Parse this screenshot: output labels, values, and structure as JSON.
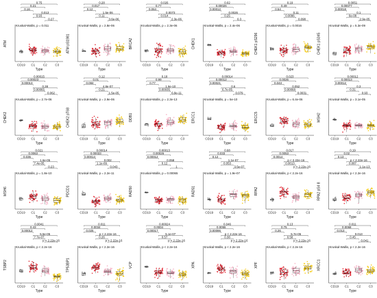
{
  "chart_data": {
    "type": "scatter",
    "subtype": "boxplot-with-jitter",
    "layout": {
      "rows": 4,
      "cols": 6
    },
    "categories": [
      "CD19",
      "C1",
      "C2",
      "C3"
    ],
    "xlabel": "Type",
    "colors": {
      "CD19": "#8c8c8c",
      "C1": "#e0101d",
      "C2": "#f7a6bd",
      "C3": "#f7c800"
    },
    "panels": [
      {
        "ylabel": "ATM",
        "pvalues": [
          "0.16",
          "0.21",
          "0.75",
          "0.93",
          "0.013",
          "0.27"
        ],
        "kw": "Kruskal-Wallis, p = 0.011",
        "groups": {
          "CD19": {
            "center": 0.28,
            "spread": 0.05,
            "n": 8
          },
          "C1": {
            "center": 0.32,
            "spread": 0.12,
            "n": 45
          },
          "C2": {
            "center": 0.3,
            "spread": 0.12,
            "n": 40
          },
          "C3": {
            "center": 0.28,
            "spread": 0.12,
            "n": 45
          }
        }
      },
      {
        "ylabel": "ATM pS1981",
        "pvalues": [
          "0.12",
          "0.017",
          "0.28",
          "0.11",
          "1.5e-06",
          "3.6e-06"
        ],
        "kw": "Kruskal-Wallis, p = 2.8e-06",
        "groups": {
          "CD19": {
            "center": 0.3,
            "spread": 0.05,
            "n": 8
          },
          "C1": {
            "center": 0.28,
            "spread": 0.12,
            "n": 45
          },
          "C2": {
            "center": 0.36,
            "spread": 0.12,
            "n": 40
          },
          "C3": {
            "center": 0.38,
            "spread": 0.12,
            "n": 45
          }
        }
      },
      {
        "ylabel": "BRCA2",
        "pvalues": [
          "0.064",
          "0.77",
          "0.026",
          "0.014",
          "0.0073",
          "2.3e-06"
        ],
        "kw": "Kruskal-Wallis, p = 2.3e-06",
        "groups": {
          "CD19": {
            "center": 0.3,
            "spread": 0.05,
            "n": 8
          },
          "C1": {
            "center": 0.3,
            "spread": 0.14,
            "n": 45
          },
          "C2": {
            "center": 0.32,
            "spread": 0.12,
            "n": 40
          },
          "C3": {
            "center": 0.26,
            "spread": 0.12,
            "n": 45
          }
        }
      },
      {
        "ylabel": "CHEK1",
        "pvalues": [
          "0.00012",
          "0.00026",
          "0.02",
          "0.25",
          "0.0026",
          "0.3"
        ],
        "kw": "Kruskal-Wallis, p = 2.4e-06",
        "groups": {
          "CD19": {
            "center": 0.48,
            "spread": 0.03,
            "n": 8
          },
          "C1": {
            "center": 0.24,
            "spread": 0.1,
            "n": 45
          },
          "C2": {
            "center": 0.28,
            "spread": 0.1,
            "n": 40
          },
          "C3": {
            "center": 0.22,
            "spread": 0.1,
            "n": 45
          }
        }
      },
      {
        "ylabel": "CHEK1 pS296",
        "pvalues": [
          "0.54",
          "0.49",
          "0.19",
          "0.0096",
          "0.11",
          "0.098"
        ],
        "kw": "Kruskal-Wallis, p = 0.0016",
        "groups": {
          "CD19": {
            "center": 0.36,
            "spread": 0.05,
            "n": 8
          },
          "C1": {
            "center": 0.3,
            "spread": 0.12,
            "n": 45
          },
          "C2": {
            "center": 0.34,
            "spread": 0.12,
            "n": 40
          },
          "C3": {
            "center": 0.4,
            "spread": 0.12,
            "n": 45
          }
        }
      },
      {
        "ylabel": "CHEK1 pS345",
        "pvalues": [
          "0.00018",
          "0.00077",
          "0.0051",
          "6e-08",
          "0.1",
          "2.9e-05"
        ],
        "kw": "Kruskal-Wallis, p = 5.3e-09",
        "groups": {
          "CD19": {
            "center": 0.24,
            "spread": 0.05,
            "n": 8
          },
          "C1": {
            "center": 0.3,
            "spread": 0.12,
            "n": 45
          },
          "C2": {
            "center": 0.36,
            "spread": 0.12,
            "n": 40
          },
          "C3": {
            "center": 0.42,
            "spread": 0.12,
            "n": 45
          }
        }
      },
      {
        "ylabel": "CHEK2",
        "pvalues": [
          "0.00013",
          "0.00023",
          "0.00015",
          "0.00065",
          "0.38",
          "0.062"
        ],
        "kw": "Kruskal-Wallis, p = 2.7e-06",
        "groups": {
          "CD19": {
            "center": 0.42,
            "spread": 0.03,
            "n": 8
          },
          "C1": {
            "center": 0.26,
            "spread": 0.1,
            "n": 45
          },
          "C2": {
            "center": 0.26,
            "spread": 0.1,
            "n": 40
          },
          "C3": {
            "center": 0.26,
            "spread": 0.1,
            "n": 45
          }
        }
      },
      {
        "ylabel": "CHEK2 pT68",
        "pvalues": [
          "0.084",
          "0.01",
          "0.12",
          "0.21",
          "4.8e-07",
          "1.5e-05"
        ],
        "kw": "Kruskal-Wallis, p = 2.9e-06",
        "groups": {
          "CD19": {
            "center": 0.3,
            "spread": 0.1,
            "n": 8
          },
          "C1": {
            "center": 0.32,
            "spread": 0.14,
            "n": 45
          },
          "C2": {
            "center": 0.36,
            "spread": 0.12,
            "n": 40
          },
          "C3": {
            "center": 0.4,
            "spread": 0.12,
            "n": 45
          }
        }
      },
      {
        "ylabel": "DDB1",
        "pvalues": [
          "0.77",
          "0.99",
          "0.18",
          "0.00035",
          "1.6e-10",
          "6.9e-11"
        ],
        "kw": "Kruskal-Wallis, p = 2.3e-13",
        "groups": {
          "CD19": {
            "center": 0.3,
            "spread": 0.05,
            "n": 8
          },
          "C1": {
            "center": 0.3,
            "spread": 0.12,
            "n": 45
          },
          "C2": {
            "center": 0.38,
            "spread": 0.12,
            "n": 40
          },
          "C3": {
            "center": 0.44,
            "spread": 0.12,
            "n": 45
          }
        }
      },
      {
        "ylabel": "ERCC1",
        "pvalues": [
          "0.00021",
          "0.00012",
          "0.00014",
          "6.7e-05",
          "0.6",
          "0.079"
        ],
        "kw": "Kruskal-Wallis, p = 5e-10",
        "groups": {
          "CD19": {
            "center": 0.46,
            "spread": 0.03,
            "n": 8
          },
          "C1": {
            "center": 0.24,
            "spread": 0.1,
            "n": 45
          },
          "C2": {
            "center": 0.26,
            "spread": 0.1,
            "n": 40
          },
          "C3": {
            "center": 0.24,
            "spread": 0.1,
            "n": 45
          }
        }
      },
      {
        "ylabel": "ERCC5",
        "pvalues": [
          "0.043",
          "0.0026",
          "0.023",
          "0.00068",
          "0.052",
          "0.0031"
        ],
        "kw": "Kruskal-Wallis, p = 6.4e-06",
        "groups": {
          "CD19": {
            "center": 0.28,
            "spread": 0.05,
            "n": 8
          },
          "C1": {
            "center": 0.4,
            "spread": 0.12,
            "n": 45
          },
          "C2": {
            "center": 0.34,
            "spread": 0.12,
            "n": 40
          },
          "C3": {
            "center": 0.3,
            "spread": 0.12,
            "n": 45
          }
        }
      },
      {
        "ylabel": "MSH2",
        "pvalues": [
          "0.00012",
          "0.00013",
          "0.00012",
          "0.31",
          "0.3",
          "0.93"
        ],
        "kw": "Kruskal-Wallis, p = 3.1e-05",
        "groups": {
          "CD19": {
            "center": 0.46,
            "spread": 0.03,
            "n": 8
          },
          "C1": {
            "center": 0.28,
            "spread": 0.1,
            "n": 45
          },
          "C2": {
            "center": 0.28,
            "spread": 0.1,
            "n": 40
          },
          "C3": {
            "center": 0.28,
            "spread": 0.1,
            "n": 45
          }
        }
      },
      {
        "ylabel": "MSH6",
        "pvalues": [
          "0.035",
          "0.0063",
          "0.021",
          "7.4e-05",
          "1.6e-05",
          "0.23"
        ],
        "kw": "Kruskal-Wallis, p = 1.8e-10",
        "groups": {
          "CD19": {
            "center": 0.3,
            "spread": 0.05,
            "n": 8
          },
          "C1": {
            "center": 0.34,
            "spread": 0.12,
            "n": 45
          },
          "C2": {
            "center": 0.28,
            "spread": 0.12,
            "n": 40
          },
          "C3": {
            "center": 0.24,
            "spread": 0.12,
            "n": 45
          }
        }
      },
      {
        "ylabel": "PDCD1",
        "pvalues": [
          "0.00014",
          "0.00033",
          "0.00014",
          "1.1e-09",
          "0.002",
          "0.043"
        ],
        "kw": "Kruskal-Wallis, p = 2.2e-11",
        "groups": {
          "CD19": {
            "center": 0.44,
            "spread": 0.06,
            "n": 8
          },
          "C1": {
            "center": 0.22,
            "spread": 0.1,
            "n": 45
          },
          "C2": {
            "center": 0.3,
            "spread": 0.1,
            "n": 40
          },
          "C3": {
            "center": 0.26,
            "spread": 0.1,
            "n": 45
          }
        }
      },
      {
        "ylabel": "RAD50",
        "pvalues": [
          "0.00012",
          "0.00026",
          "0.00013",
          "0.12",
          "0.058",
          "1"
        ],
        "kw": "Kruskal-Wallis, p = 0.00065",
        "groups": {
          "CD19": {
            "center": 0.46,
            "spread": 0.03,
            "n": 8
          },
          "C1": {
            "center": 0.26,
            "spread": 0.1,
            "n": 45
          },
          "C2": {
            "center": 0.26,
            "spread": 0.1,
            "n": 40
          },
          "C3": {
            "center": 0.26,
            "spread": 0.1,
            "n": 45
          }
        }
      },
      {
        "ylabel": "RAD51",
        "pvalues": [
          "0.12",
          "0.033",
          "0.68",
          "0.053",
          "1.1e-07",
          "3.5e-07"
        ],
        "kw": "Kruskal-Wallis, p = 1.9e-07",
        "groups": {
          "CD19": {
            "center": 0.3,
            "spread": 0.05,
            "n": 8
          },
          "C1": {
            "center": 0.28,
            "spread": 0.12,
            "n": 45
          },
          "C2": {
            "center": 0.4,
            "spread": 0.12,
            "n": 40
          },
          "C3": {
            "center": 0.38,
            "spread": 0.12,
            "n": 45
          }
        }
      },
      {
        "ylabel": "RPA2",
        "pvalues": [
          "0.0014",
          "0.0053",
          "0.017",
          "0.0013",
          "p < 2.22e-16",
          "p < 2.22e-16"
        ],
        "kw": "Kruskal-Wallis, p < 2.2e-16",
        "groups": {
          "CD19": {
            "center": 0.26,
            "spread": 0.05,
            "n": 8
          },
          "C1": {
            "center": 0.48,
            "spread": 0.12,
            "n": 45
          },
          "C2": {
            "center": 0.36,
            "spread": 0.12,
            "n": 40
          },
          "C3": {
            "center": 0.4,
            "spread": 0.12,
            "n": 45
          }
        }
      },
      {
        "ylabel": "RPA2 pS4 8",
        "pvalues": [
          "0.13",
          "0.02",
          "0.19",
          "0.087",
          "p < 2.22e-16",
          "1.1e-13"
        ],
        "kw": "Kruskal-Wallis, p < 2.2e-16",
        "groups": {
          "CD19": {
            "center": 0.28,
            "spread": 0.05,
            "n": 8
          },
          "C1": {
            "center": 0.32,
            "spread": 0.12,
            "n": 45
          },
          "C2": {
            "center": 0.4,
            "spread": 0.12,
            "n": 40
          },
          "C3": {
            "center": 0.46,
            "spread": 0.12,
            "n": 45
          }
        }
      },
      {
        "ylabel": "TSBP2",
        "pvalues": [
          "0.00012",
          "0.43",
          "0.0041",
          "7.7e-07",
          "5.5e-05",
          "p < 2.22e-16"
        ],
        "kw": "Kruskal-Wallis, p < 2.2e-16",
        "groups": {
          "CD19": {
            "center": 0.34,
            "spread": 0.05,
            "n": 8
          },
          "C1": {
            "center": 0.44,
            "spread": 0.12,
            "n": 45
          },
          "C2": {
            "center": 0.34,
            "spread": 0.12,
            "n": 40
          },
          "C3": {
            "center": 0.18,
            "spread": 0.1,
            "n": 45
          }
        }
      },
      {
        "ylabel": "TP53BP1",
        "pvalues": [
          "0.025",
          "0.0034",
          "0.011",
          "0.26",
          "p < 2.22e-16",
          "p < 2.22e-16"
        ],
        "kw": "Kruskal-Wallis, p < 2.2e-16",
        "groups": {
          "CD19": {
            "center": 0.26,
            "spread": 0.05,
            "n": 8
          },
          "C1": {
            "center": 0.44,
            "spread": 0.12,
            "n": 45
          },
          "C2": {
            "center": 0.34,
            "spread": 0.12,
            "n": 40
          },
          "C3": {
            "center": 0.28,
            "spread": 0.12,
            "n": 45
          }
        }
      },
      {
        "ylabel": "VCP",
        "pvalues": [
          "0.00017",
          "0.0004",
          "0.00024",
          "0.57",
          "5.1e-07",
          "p < 2.22e-16"
        ],
        "kw": "Kruskal-Wallis, p < 2.2e-16",
        "groups": {
          "CD19": {
            "center": 0.46,
            "spread": 0.03,
            "n": 8
          },
          "C1": {
            "center": 0.3,
            "spread": 0.1,
            "n": 45
          },
          "C2": {
            "center": 0.3,
            "spread": 0.1,
            "n": 40
          },
          "C3": {
            "center": 0.24,
            "spread": 0.1,
            "n": 45
          }
        }
      },
      {
        "ylabel": "XPA",
        "pvalues": [
          "0.00096",
          "0.0055",
          "0.046",
          "0.38",
          "p < 2.22e-16",
          "p < 2.22e-16"
        ],
        "kw": "Kruskal-Wallis, p < 2.2e-16",
        "groups": {
          "CD19": {
            "center": 0.28,
            "spread": 0.05,
            "n": 8
          },
          "C1": {
            "center": 0.4,
            "spread": 0.12,
            "n": 45
          },
          "C2": {
            "center": 0.32,
            "spread": 0.12,
            "n": 40
          },
          "C3": {
            "center": 0.26,
            "spread": 0.12,
            "n": 45
          }
        }
      },
      {
        "ylabel": "XPF",
        "pvalues": [
          "0.26",
          "0.75",
          "0.13",
          "0.58",
          "5.7e-05",
          "p < 2.22e-16"
        ],
        "kw": "Kruskal-Wallis, p < 2.2e-16",
        "groups": {
          "CD19": {
            "center": 0.3,
            "spread": 0.05,
            "n": 8
          },
          "C1": {
            "center": 0.3,
            "spread": 0.12,
            "n": 45
          },
          "C2": {
            "center": 0.34,
            "spread": 0.12,
            "n": 40
          },
          "C3": {
            "center": 0.42,
            "spread": 0.12,
            "n": 45
          }
        }
      },
      {
        "ylabel": "XRCC1",
        "pvalues": [
          "0.013",
          "0.0068",
          "0.011",
          "0.45",
          "0.013",
          "0.041"
        ],
        "kw": "Kruskal-Wallis, p < 2.2e-16",
        "groups": {
          "CD19": {
            "center": 0.26,
            "spread": 0.05,
            "n": 8
          },
          "C1": {
            "center": 0.3,
            "spread": 0.12,
            "n": 45
          },
          "C2": {
            "center": 0.36,
            "spread": 0.12,
            "n": 40
          },
          "C3": {
            "center": 0.34,
            "spread": 0.12,
            "n": 45
          }
        }
      }
    ]
  }
}
